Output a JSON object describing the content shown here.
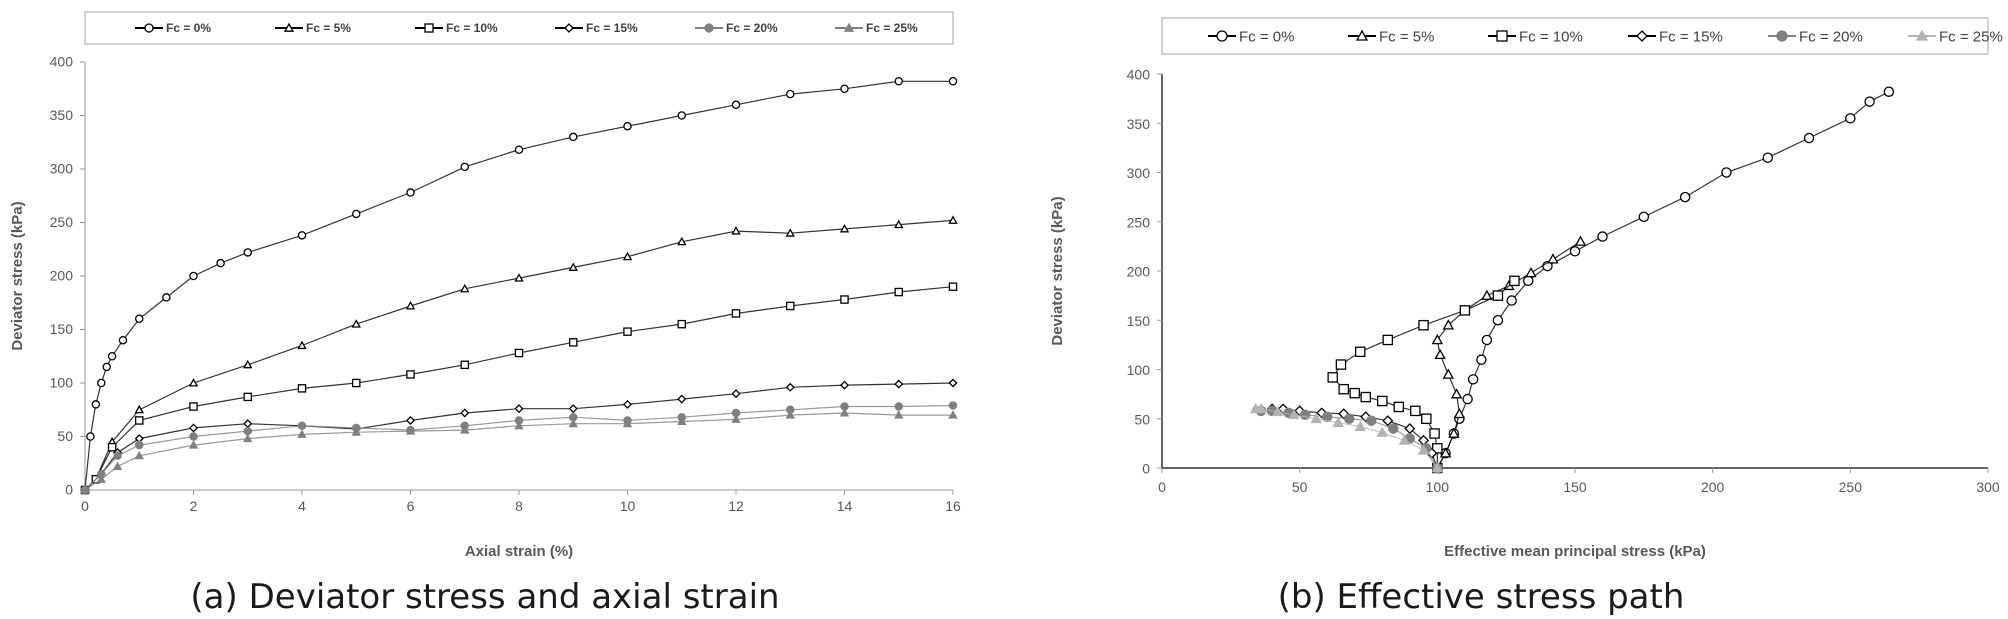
{
  "chart_data": [
    {
      "type": "scatter",
      "caption": "(a) Deviator stress and axial strain",
      "xlabel": "Axial strain (%)",
      "ylabel": "Deviator stress (kPa)",
      "xlim": [
        0,
        16
      ],
      "ylim": [
        0,
        400
      ],
      "xticks": [
        0,
        2,
        4,
        6,
        8,
        10,
        12,
        14,
        16
      ],
      "yticks": [
        0,
        50,
        100,
        150,
        200,
        250,
        300,
        350,
        400
      ],
      "grid": false,
      "legend_position": "top",
      "series": [
        {
          "name": "Fc = 0%",
          "marker": "circle",
          "color": "#000000",
          "x": [
            0,
            0.1,
            0.2,
            0.3,
            0.4,
            0.5,
            0.7,
            1,
            1.5,
            2,
            2.5,
            3,
            4,
            5,
            6,
            7,
            8,
            9,
            10,
            11,
            12,
            13,
            14,
            15,
            16
          ],
          "y": [
            0,
            50,
            80,
            100,
            115,
            125,
            140,
            160,
            180,
            200,
            212,
            222,
            238,
            258,
            278,
            302,
            318,
            330,
            340,
            350,
            360,
            370,
            375,
            382,
            382
          ]
        },
        {
          "name": "Fc = 5%",
          "marker": "triangle",
          "color": "#000000",
          "x": [
            0,
            0.2,
            0.5,
            1,
            2,
            3,
            4,
            5,
            6,
            7,
            8,
            9,
            10,
            11,
            12,
            13,
            14,
            15,
            16
          ],
          "y": [
            0,
            10,
            45,
            75,
            100,
            117,
            135,
            155,
            172,
            188,
            198,
            208,
            218,
            232,
            242,
            240,
            244,
            248,
            252
          ]
        },
        {
          "name": "Fc = 10%",
          "marker": "square",
          "color": "#000000",
          "x": [
            0,
            0.2,
            0.5,
            1,
            2,
            3,
            4,
            5,
            6,
            7,
            8,
            9,
            10,
            11,
            12,
            13,
            14,
            15,
            16
          ],
          "y": [
            0,
            10,
            40,
            65,
            78,
            87,
            95,
            100,
            108,
            117,
            128,
            138,
            148,
            155,
            165,
            172,
            178,
            185,
            190
          ]
        },
        {
          "name": "Fc = 15%",
          "marker": "diamond",
          "color": "#000000",
          "x": [
            0,
            0.3,
            0.6,
            1,
            2,
            3,
            4,
            5,
            6,
            7,
            8,
            9,
            10,
            11,
            12,
            13,
            14,
            15,
            16
          ],
          "y": [
            0,
            15,
            35,
            48,
            58,
            62,
            60,
            57,
            65,
            72,
            76,
            76,
            80,
            85,
            90,
            96,
            98,
            99,
            100
          ]
        },
        {
          "name": "Fc = 20%",
          "marker": "circle-filled",
          "color": "#808080",
          "x": [
            0,
            0.3,
            0.6,
            1,
            2,
            3,
            4,
            5,
            6,
            7,
            8,
            9,
            10,
            11,
            12,
            13,
            14,
            15,
            16
          ],
          "y": [
            0,
            15,
            32,
            42,
            50,
            55,
            60,
            58,
            56,
            60,
            65,
            68,
            65,
            68,
            72,
            75,
            78,
            78,
            79
          ]
        },
        {
          "name": "Fc = 25%",
          "marker": "triangle-filled",
          "color": "#808080",
          "x": [
            0,
            0.3,
            0.6,
            1,
            2,
            3,
            4,
            5,
            6,
            7,
            8,
            9,
            10,
            11,
            12,
            13,
            14,
            15,
            16
          ],
          "y": [
            0,
            10,
            22,
            32,
            42,
            48,
            52,
            54,
            55,
            56,
            60,
            62,
            62,
            64,
            66,
            70,
            72,
            70,
            70
          ]
        }
      ]
    },
    {
      "type": "scatter",
      "caption": "(b) Effective stress path",
      "xlabel": "Effective mean principal stress (kPa)",
      "ylabel": "Deviator stress (kPa)",
      "xlim": [
        0,
        300
      ],
      "ylim": [
        0,
        400
      ],
      "xticks": [
        0,
        50,
        100,
        150,
        200,
        250,
        300
      ],
      "yticks": [
        0,
        50,
        100,
        150,
        200,
        250,
        300,
        350,
        400
      ],
      "grid": false,
      "legend_position": "top",
      "series": [
        {
          "name": "Fc = 0%",
          "marker": "circle",
          "color": "#000000",
          "x": [
            100,
            103,
            106,
            108,
            111,
            113,
            116,
            118,
            122,
            127,
            133,
            140,
            150,
            160,
            175,
            190,
            205,
            220,
            235,
            250,
            257,
            264
          ],
          "y": [
            0,
            15,
            35,
            50,
            70,
            90,
            110,
            130,
            150,
            170,
            190,
            205,
            220,
            235,
            255,
            275,
            300,
            315,
            335,
            355,
            372,
            382
          ]
        },
        {
          "name": "Fc = 5%",
          "marker": "triangle",
          "color": "#000000",
          "x": [
            100,
            103,
            106,
            108,
            107,
            104,
            101,
            100,
            104,
            110,
            118,
            126,
            134,
            142,
            152
          ],
          "y": [
            0,
            15,
            35,
            55,
            75,
            95,
            115,
            130,
            145,
            160,
            175,
            185,
            198,
            212,
            230
          ]
        },
        {
          "name": "Fc = 10%",
          "marker": "square",
          "color": "#000000",
          "x": [
            100,
            100,
            99,
            96,
            92,
            86,
            80,
            74,
            70,
            66,
            62,
            65,
            72,
            82,
            95,
            110,
            122,
            128
          ],
          "y": [
            0,
            20,
            35,
            50,
            58,
            62,
            68,
            72,
            76,
            80,
            92,
            105,
            118,
            130,
            145,
            160,
            175,
            190
          ]
        },
        {
          "name": "Fc = 15%",
          "marker": "diamond",
          "color": "#000000",
          "x": [
            100,
            98,
            95,
            90,
            82,
            74,
            66,
            58,
            50,
            44,
            40
          ],
          "y": [
            0,
            15,
            28,
            40,
            48,
            52,
            55,
            56,
            58,
            60,
            60
          ]
        },
        {
          "name": "Fc = 20%",
          "marker": "circle-filled",
          "color": "#808080",
          "x": [
            100,
            96,
            90,
            84,
            76,
            68,
            60,
            52,
            46,
            40,
            36
          ],
          "y": [
            0,
            20,
            30,
            40,
            48,
            50,
            52,
            54,
            56,
            58,
            58
          ]
        },
        {
          "name": "Fc = 25%",
          "marker": "triangle-filled",
          "color": "#b3b3b3",
          "x": [
            100,
            95,
            88,
            80,
            72,
            64,
            56,
            48,
            42,
            36,
            34
          ],
          "y": [
            0,
            18,
            28,
            36,
            42,
            46,
            50,
            54,
            57,
            60,
            60
          ]
        }
      ]
    }
  ]
}
